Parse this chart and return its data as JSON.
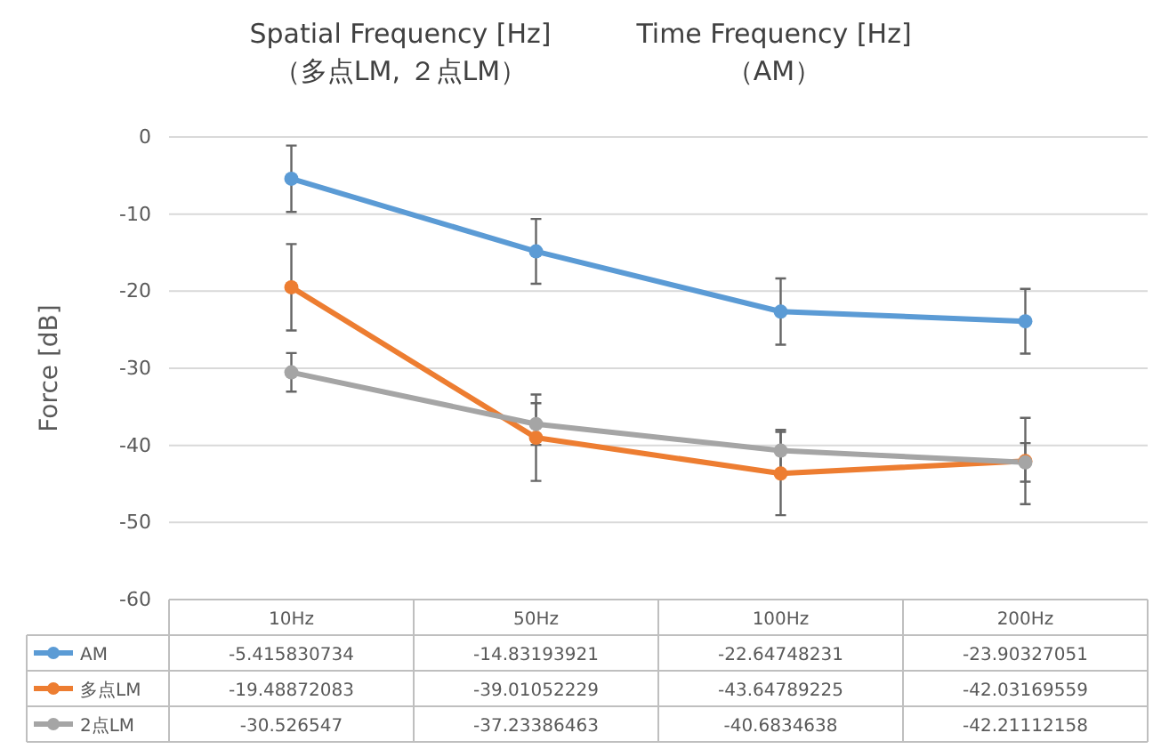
{
  "chart_data": {
    "type": "line",
    "ylabel": "Force [dB]",
    "annotations": [
      "Spatial Frequency [Hz]\n（多点LM, ２点LM）",
      "Time Frequency [Hz]\n（AM）"
    ],
    "categories": [
      "10Hz",
      "50Hz",
      "100Hz",
      "200Hz"
    ],
    "ylim": [
      -60,
      0
    ],
    "yticks": [
      -60,
      -50,
      -40,
      -30,
      -20,
      -10,
      0
    ],
    "grid": "y",
    "legend": "bottom",
    "marker": "circle",
    "data_labels": true,
    "series": [
      {
        "name": "AM",
        "color": "#5b9bd5",
        "values": [
          -5.415830734,
          -14.83193921,
          -22.64748231,
          -23.90327051
        ],
        "errors": [
          4.3,
          4.2,
          4.3,
          4.2
        ]
      },
      {
        "name": "多点LM",
        "color": "#ed7d31",
        "values": [
          -19.48872083,
          -39.01052229,
          -43.64789225,
          -42.03169559
        ],
        "errors": [
          5.6,
          5.6,
          5.4,
          5.6
        ]
      },
      {
        "name": "2点LM",
        "color": "#a5a5a5",
        "values": [
          -30.526547,
          -37.23386463,
          -40.6834638,
          -42.21112158
        ],
        "errors": [
          2.5,
          2.7,
          2.7,
          2.5
        ]
      }
    ]
  }
}
